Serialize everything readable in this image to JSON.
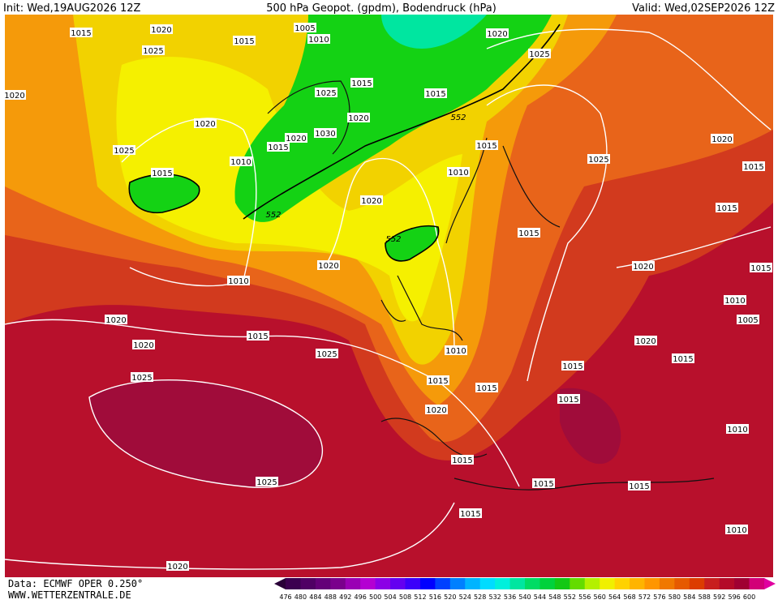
{
  "header": {
    "init": "Init: Wed,19AUG2026 12Z",
    "title": "500 hPa Geopot. (gpdm), Bodendruck (hPa)",
    "valid": "Valid: Wed,02SEP2026 12Z"
  },
  "footer": {
    "data": "Data: ECMWF OPER 0.250°",
    "website": "WWW.WETTERZENTRALE.DE"
  },
  "legend": {
    "labels": [
      "476",
      "480",
      "484",
      "488",
      "492",
      "496",
      "500",
      "504",
      "508",
      "512",
      "516",
      "520",
      "524",
      "528",
      "532",
      "536",
      "540",
      "544",
      "548",
      "552",
      "556",
      "560",
      "564",
      "568",
      "572",
      "576",
      "580",
      "584",
      "588",
      "592",
      "596",
      "600"
    ]
  },
  "contour_labels": [
    "1015",
    "1020",
    "1015",
    "1005",
    "1010",
    "1020",
    "1025",
    "1025",
    "1020",
    "1015",
    "1015",
    "1025",
    "1020",
    "1020",
    "1030",
    "1020",
    "1015",
    "1025",
    "1015",
    "1020",
    "1010",
    "1015",
    "1010",
    "1025",
    "1015",
    "1020",
    "1015",
    "1015",
    "1020",
    "1020",
    "1015",
    "1010",
    "1010",
    "1020",
    "1005",
    "1015",
    "1020",
    "1020",
    "1010",
    "1025",
    "1015",
    "1015",
    "1025",
    "1015",
    "1015",
    "1015",
    "1020",
    "1010",
    "1015",
    "1015",
    "1025",
    "1015",
    "1015",
    "1010",
    "1020"
  ],
  "geopotential_labels": [
    "552",
    "552",
    "552"
  ]
}
